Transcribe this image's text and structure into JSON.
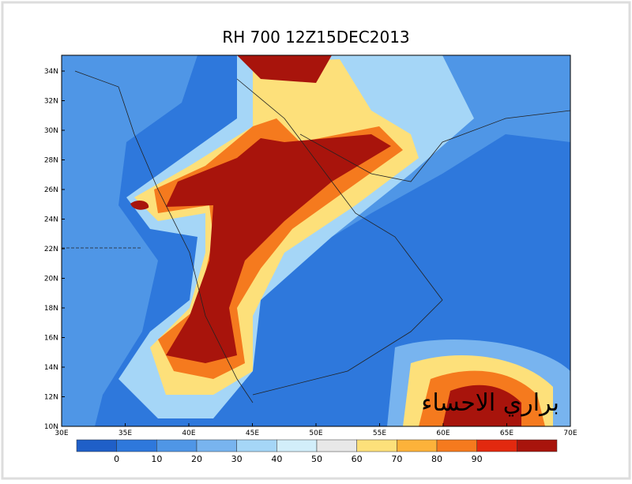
{
  "title": "RH 700 12Z15DEC2013",
  "lat_labels": [
    "34N",
    "32N",
    "30N",
    "28N",
    "26N",
    "24N",
    "22N",
    "20N",
    "18N",
    "16N",
    "14N",
    "12N",
    "10N"
  ],
  "lon_labels": [
    "30E",
    "35E",
    "40E",
    "45E",
    "50E",
    "55E",
    "60E",
    "65E",
    "70E"
  ],
  "colorbar": {
    "colors": [
      "#1f5fc8",
      "#2e78dc",
      "#4f96e6",
      "#78b4ef",
      "#a5d6f7",
      "#d2eefa",
      "#e8e8e8",
      "#fde07a",
      "#fcb23a",
      "#f57a1e",
      "#e2290f",
      "#a8140c"
    ],
    "labels": [
      "0",
      "10",
      "20",
      "30",
      "40",
      "50",
      "60",
      "70",
      "80",
      "90"
    ]
  },
  "watermark": "براري الاحساء"
}
